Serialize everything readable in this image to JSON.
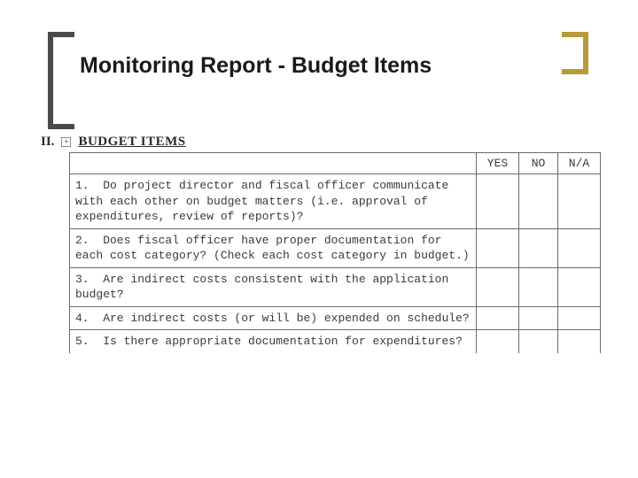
{
  "title": "Monitoring Report  - Budget Items",
  "section": {
    "roman": "II.",
    "expand_glyph": "+",
    "label": "BUDGET ITEMS"
  },
  "table": {
    "columns": {
      "question": "",
      "yes": "YES",
      "no": "NO",
      "na": "N/A"
    },
    "rows": [
      {
        "q": "1.  Do project director and fiscal officer communicate with each other on budget matters (i.e. approval of expenditures, review of reports)?"
      },
      {
        "q": "2.  Does fiscal officer have proper documentation for each cost category? (Check each cost category in budget.)"
      },
      {
        "q": "3.  Are indirect costs consistent with the application budget?"
      },
      {
        "q": "4.  Are indirect costs (or will be) expended on schedule?"
      },
      {
        "q": "5.  Is there appropriate documentation for expenditures?"
      }
    ]
  },
  "colors": {
    "bracket_left": "#4a4a4a",
    "bracket_right": "#b79a3a",
    "border": "#6a6a6a",
    "text": "#3a3a3a"
  }
}
